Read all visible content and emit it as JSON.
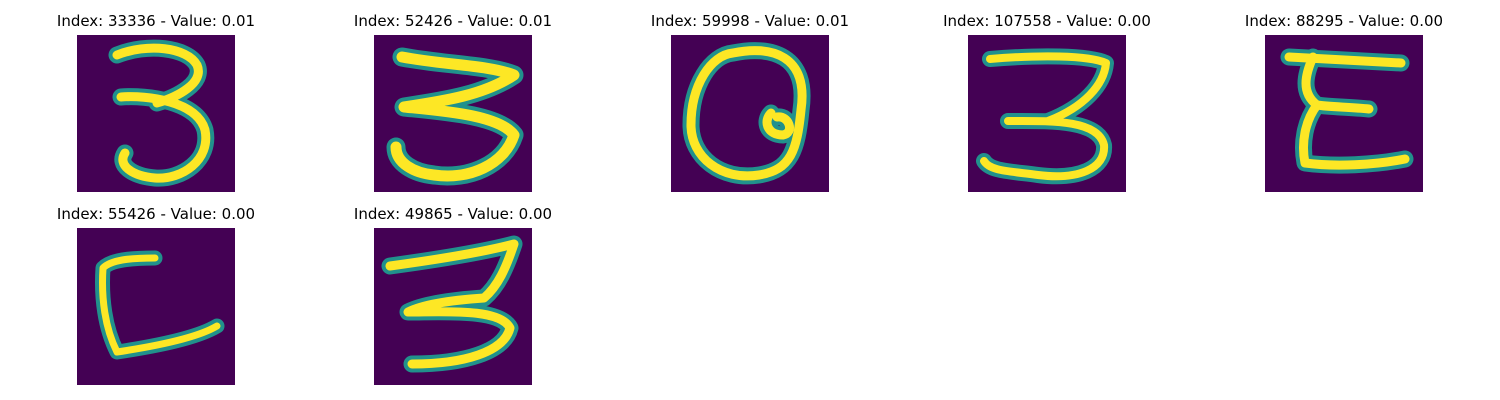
{
  "figure": {
    "colormap": {
      "background": "#440154",
      "mid": "#21918c",
      "high": "#fde725"
    },
    "panels": [
      {
        "title": "Index: 33336 - Value: 0.01",
        "digit": "3"
      },
      {
        "title": "Index: 52426 - Value: 0.01",
        "digit": "3"
      },
      {
        "title": "Index: 59998 - Value: 0.01",
        "digit": "Q"
      },
      {
        "title": "Index: 107558 - Value: 0.00",
        "digit": "3"
      },
      {
        "title": "Index: 88295 - Value: 0.00",
        "digit": "E"
      },
      {
        "title": "Index: 55426 - Value: 0.00",
        "digit": "L"
      },
      {
        "title": "Index: 49865 - Value: 0.00",
        "digit": "3"
      }
    ]
  }
}
